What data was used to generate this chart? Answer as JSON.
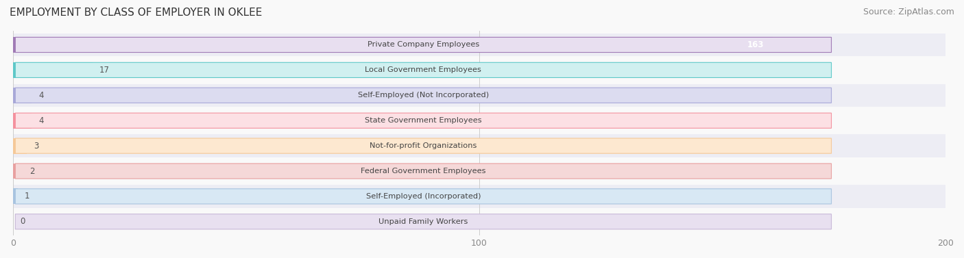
{
  "title": "EMPLOYMENT BY CLASS OF EMPLOYER IN OKLEE",
  "source": "Source: ZipAtlas.com",
  "categories": [
    "Private Company Employees",
    "Local Government Employees",
    "Self-Employed (Not Incorporated)",
    "State Government Employees",
    "Not-for-profit Organizations",
    "Federal Government Employees",
    "Self-Employed (Incorporated)",
    "Unpaid Family Workers"
  ],
  "values": [
    163,
    17,
    4,
    4,
    3,
    2,
    1,
    0
  ],
  "bar_colors": [
    "#a07ab5",
    "#5ec8c8",
    "#a8a8d8",
    "#f4919e",
    "#f5c898",
    "#e8a0a0",
    "#a8c4e0",
    "#c8b8d8"
  ],
  "label_bg_colors": [
    "#e8dff0",
    "#d0f0f0",
    "#dcdcf0",
    "#fce0e4",
    "#fde8d0",
    "#f5d8d8",
    "#d8e8f4",
    "#e8e0f0"
  ],
  "xlim": [
    0,
    200
  ],
  "xticks": [
    0,
    100,
    200
  ],
  "title_fontsize": 11,
  "value_label_fontsize": 8.5,
  "source_fontsize": 9,
  "background_color": "#f9f9f9",
  "row_bg_colors": [
    "#ededf4",
    "#f9f9f9"
  ]
}
